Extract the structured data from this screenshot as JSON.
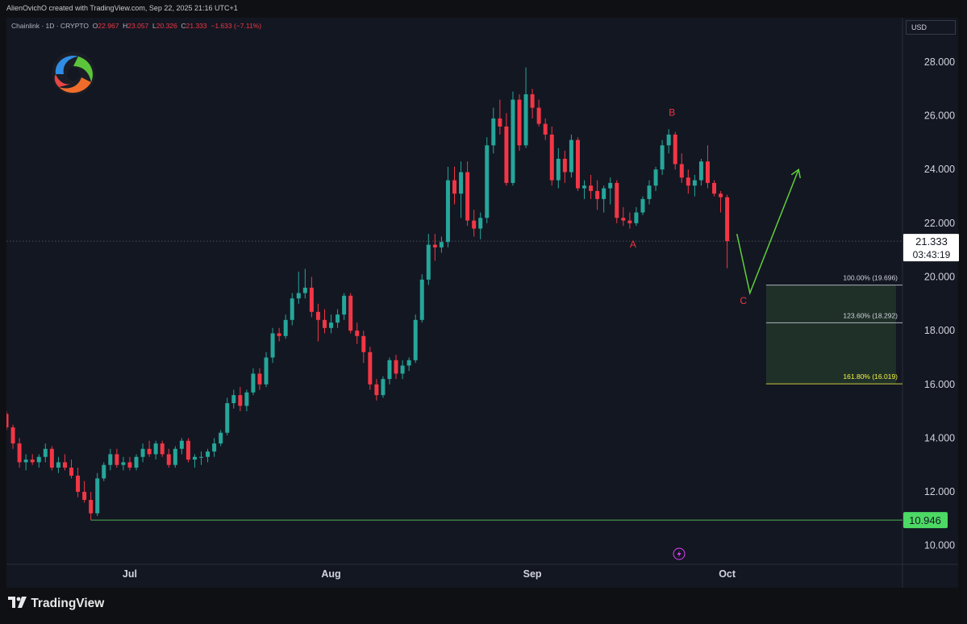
{
  "header": {
    "credit": "AlienOvichO created with TradingView.com, Sep 22, 2025 21:16 UTC+1"
  },
  "legend": {
    "symbol": "Chainlink · 1D · CRYPTO",
    "open_label": "O",
    "open": "22.967",
    "high_label": "H",
    "high": "23.057",
    "low_label": "L",
    "low": "20.326",
    "close_label": "C",
    "close": "21.333",
    "change": "−1.633 (−7.11%)"
  },
  "currency_button": "USD",
  "brand": {
    "name": "TradingView"
  },
  "logo": {
    "icon": "swirl-logo-icon"
  },
  "colors": {
    "up": "#26a69a",
    "down": "#f23645",
    "grid": "#1c2030",
    "axis_text": "#d1d4dc",
    "projection": "#5fcf3a",
    "fib_zone": "#2a4630",
    "label_red": "#f23645",
    "support_line": "#4caf50"
  },
  "chart_data": {
    "type": "candlestick",
    "title": "",
    "xlabel": "",
    "ylabel": "",
    "ylim": [
      9.3,
      29.65
    ],
    "ytick_labels": [
      "10.000",
      "12.000",
      "14.000",
      "16.000",
      "18.000",
      "20.000",
      "22.000",
      "24.000",
      "26.000",
      "28.000"
    ],
    "yticks": [
      10,
      12,
      14,
      16,
      18,
      20,
      22,
      24,
      26,
      28
    ],
    "x_months": [
      {
        "label": "Jul",
        "day": 11
      },
      {
        "label": "Aug",
        "day": 42
      },
      {
        "label": "Sep",
        "day": 73
      },
      {
        "label": "Oct",
        "day": 103
      }
    ],
    "x_range_days": [
      -8,
      130
    ],
    "candles": [
      [
        -8,
        14.9,
        15.0,
        14.3,
        14.4
      ],
      [
        -7,
        14.4,
        14.5,
        13.6,
        13.8
      ],
      [
        -6,
        13.8,
        14.0,
        12.9,
        13.1
      ],
      [
        -5,
        13.1,
        13.4,
        12.8,
        13.2
      ],
      [
        -4,
        13.2,
        13.4,
        13.0,
        13.1
      ],
      [
        -3,
        13.1,
        13.4,
        12.9,
        13.3
      ],
      [
        -2,
        13.3,
        13.8,
        13.1,
        13.6
      ],
      [
        -1,
        13.6,
        13.7,
        12.8,
        12.9
      ],
      [
        0,
        12.9,
        13.3,
        12.7,
        13.1
      ],
      [
        1,
        13.1,
        13.4,
        12.8,
        12.9
      ],
      [
        2,
        12.9,
        13.2,
        12.5,
        12.6
      ],
      [
        3,
        12.6,
        12.9,
        11.8,
        12.0
      ],
      [
        4,
        12.0,
        12.4,
        11.6,
        11.7
      ],
      [
        5,
        11.7,
        12.0,
        10.95,
        11.2
      ],
      [
        6,
        11.2,
        12.7,
        11.1,
        12.5
      ],
      [
        7,
        12.5,
        13.1,
        12.4,
        13.0
      ],
      [
        8,
        13.0,
        13.6,
        12.8,
        13.4
      ],
      [
        9,
        13.4,
        13.6,
        12.9,
        13.0
      ],
      [
        10,
        13.0,
        13.3,
        12.8,
        13.1
      ],
      [
        11,
        13.1,
        13.3,
        12.8,
        12.9
      ],
      [
        12,
        12.9,
        13.4,
        12.8,
        13.3
      ],
      [
        13,
        13.3,
        13.8,
        13.1,
        13.6
      ],
      [
        14,
        13.6,
        13.9,
        13.3,
        13.4
      ],
      [
        15,
        13.4,
        13.9,
        13.2,
        13.8
      ],
      [
        16,
        13.8,
        13.9,
        13.3,
        13.4
      ],
      [
        17,
        13.4,
        13.6,
        12.9,
        13.0
      ],
      [
        18,
        13.0,
        13.7,
        12.9,
        13.6
      ],
      [
        19,
        13.6,
        14.0,
        13.4,
        13.9
      ],
      [
        20,
        13.9,
        14.0,
        13.1,
        13.2
      ],
      [
        21,
        13.2,
        13.4,
        12.9,
        13.3
      ],
      [
        22,
        13.3,
        13.5,
        13.0,
        13.3
      ],
      [
        23,
        13.3,
        13.6,
        13.1,
        13.5
      ],
      [
        24,
        13.5,
        14.0,
        13.3,
        13.8
      ],
      [
        25,
        13.8,
        14.3,
        13.7,
        14.2
      ],
      [
        26,
        14.2,
        15.5,
        14.1,
        15.3
      ],
      [
        27,
        15.3,
        15.8,
        15.1,
        15.6
      ],
      [
        28,
        15.6,
        15.9,
        15.0,
        15.2
      ],
      [
        29,
        15.2,
        15.8,
        15.0,
        15.7
      ],
      [
        30,
        15.7,
        16.6,
        15.6,
        16.4
      ],
      [
        31,
        16.4,
        16.6,
        15.8,
        16.0
      ],
      [
        32,
        16.0,
        17.2,
        15.9,
        17.0
      ],
      [
        33,
        17.0,
        18.1,
        16.8,
        17.9
      ],
      [
        34,
        17.9,
        18.1,
        17.6,
        17.8
      ],
      [
        35,
        17.8,
        18.6,
        17.7,
        18.4
      ],
      [
        36,
        18.4,
        19.4,
        18.2,
        19.2
      ],
      [
        37,
        19.2,
        20.2,
        19.0,
        19.4
      ],
      [
        38,
        19.4,
        20.3,
        19.2,
        19.6
      ],
      [
        39,
        19.6,
        20.0,
        18.5,
        18.7
      ],
      [
        40,
        18.7,
        19.0,
        17.6,
        18.4
      ],
      [
        41,
        18.4,
        18.8,
        17.9,
        18.1
      ],
      [
        42,
        18.1,
        18.6,
        17.9,
        18.3
      ],
      [
        43,
        18.3,
        18.8,
        18.1,
        18.6
      ],
      [
        44,
        18.6,
        19.4,
        18.4,
        19.3
      ],
      [
        45,
        19.3,
        19.4,
        17.9,
        18.0
      ],
      [
        46,
        18.0,
        18.3,
        17.5,
        17.8
      ],
      [
        47,
        17.8,
        18.0,
        16.8,
        17.2
      ],
      [
        48,
        17.2,
        17.4,
        15.8,
        16.0
      ],
      [
        49,
        16.0,
        16.2,
        15.4,
        15.6
      ],
      [
        50,
        15.6,
        16.3,
        15.5,
        16.2
      ],
      [
        51,
        16.2,
        17.0,
        16.0,
        16.9
      ],
      [
        52,
        16.9,
        17.1,
        16.2,
        16.4
      ],
      [
        53,
        16.4,
        16.9,
        16.2,
        16.7
      ],
      [
        54,
        16.7,
        17.0,
        16.5,
        16.9
      ],
      [
        55,
        16.9,
        18.6,
        16.8,
        18.4
      ],
      [
        56,
        18.4,
        20.1,
        18.3,
        19.9
      ],
      [
        57,
        19.9,
        21.6,
        19.7,
        21.2
      ],
      [
        58,
        21.2,
        21.6,
        20.6,
        21.1
      ],
      [
        59,
        21.1,
        21.5,
        20.9,
        21.3
      ],
      [
        60,
        21.3,
        24.1,
        21.1,
        23.6
      ],
      [
        61,
        23.6,
        24.1,
        22.7,
        23.1
      ],
      [
        62,
        23.1,
        24.3,
        22.2,
        23.9
      ],
      [
        63,
        23.9,
        24.3,
        21.9,
        22.1
      ],
      [
        64,
        22.1,
        22.5,
        21.5,
        21.8
      ],
      [
        65,
        21.8,
        22.4,
        21.4,
        22.2
      ],
      [
        66,
        22.2,
        25.2,
        22.0,
        24.9
      ],
      [
        67,
        24.9,
        26.3,
        24.6,
        25.9
      ],
      [
        68,
        25.9,
        26.6,
        25.3,
        25.6
      ],
      [
        69,
        25.6,
        26.1,
        23.4,
        23.5
      ],
      [
        70,
        23.5,
        26.9,
        23.4,
        26.6
      ],
      [
        71,
        26.6,
        26.8,
        24.7,
        24.9
      ],
      [
        72,
        24.9,
        27.8,
        24.8,
        26.8
      ],
      [
        73,
        26.8,
        27.0,
        25.9,
        26.3
      ],
      [
        74,
        26.3,
        26.6,
        25.6,
        25.7
      ],
      [
        75,
        25.7,
        25.9,
        25.1,
        25.3
      ],
      [
        76,
        25.3,
        25.6,
        23.4,
        23.6
      ],
      [
        77,
        23.6,
        24.8,
        23.3,
        24.4
      ],
      [
        78,
        24.4,
        24.7,
        23.5,
        23.9
      ],
      [
        79,
        23.9,
        25.3,
        23.7,
        25.1
      ],
      [
        80,
        25.1,
        25.2,
        23.2,
        23.3
      ],
      [
        81,
        23.3,
        23.6,
        22.9,
        23.4
      ],
      [
        82,
        23.4,
        23.8,
        22.9,
        23.2
      ],
      [
        83,
        23.2,
        23.6,
        22.5,
        22.9
      ],
      [
        84,
        22.9,
        23.4,
        22.4,
        23.3
      ],
      [
        85,
        23.3,
        23.7,
        22.7,
        23.5
      ],
      [
        86,
        23.5,
        23.6,
        22.0,
        22.2
      ],
      [
        87,
        22.2,
        22.6,
        21.9,
        22.1
      ],
      [
        88,
        22.1,
        22.4,
        21.8,
        22.0
      ],
      [
        89,
        22.0,
        22.6,
        21.9,
        22.4
      ],
      [
        90,
        22.4,
        23.0,
        22.3,
        22.9
      ],
      [
        91,
        22.9,
        23.6,
        22.7,
        23.4
      ],
      [
        92,
        23.4,
        24.1,
        23.2,
        24.0
      ],
      [
        93,
        24.0,
        25.1,
        23.8,
        24.9
      ],
      [
        94,
        24.9,
        25.5,
        24.6,
        25.3
      ],
      [
        95,
        25.3,
        25.4,
        24.0,
        24.2
      ],
      [
        96,
        24.2,
        24.6,
        23.5,
        23.7
      ],
      [
        97,
        23.7,
        24.0,
        23.1,
        23.4
      ],
      [
        98,
        23.4,
        23.8,
        23.0,
        23.6
      ],
      [
        99,
        23.6,
        24.4,
        23.4,
        24.3
      ],
      [
        100,
        24.3,
        24.9,
        23.3,
        23.5
      ],
      [
        101,
        23.5,
        23.6,
        23.0,
        23.1
      ],
      [
        102,
        23.1,
        23.2,
        22.4,
        22.967
      ],
      [
        103,
        22.967,
        23.057,
        20.326,
        21.333
      ]
    ],
    "last_price": {
      "value": 21.333,
      "label": "21.333",
      "countdown": "03:43:19"
    },
    "support": {
      "value": 10.946,
      "label": "10.946",
      "from_day": 5
    },
    "fib_zone": {
      "from_day": 109,
      "to_day": 129,
      "levels": [
        {
          "value": 19.696,
          "label": "100.00% (19.696)",
          "color": "#d1d4dc"
        },
        {
          "value": 18.292,
          "label": "123.60% (18.292)",
          "color": "#d1d4dc"
        },
        {
          "value": 16.019,
          "label": "161.80% (16.019)",
          "color": "#f5f542"
        }
      ]
    },
    "wave_labels": [
      {
        "text": "A",
        "day": 88.5,
        "value": 21.1
      },
      {
        "text": "B",
        "day": 94.5,
        "value": 26.0
      },
      {
        "text": "C",
        "day": 105.5,
        "value": 19.0
      }
    ],
    "projection": [
      [
        104.5,
        21.6
      ],
      [
        106.5,
        19.4
      ],
      [
        114,
        24.0
      ]
    ]
  }
}
